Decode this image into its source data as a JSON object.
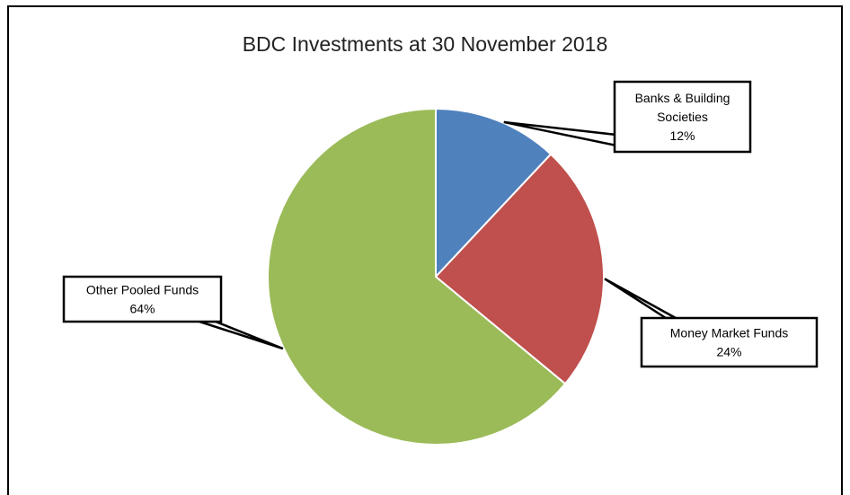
{
  "chart_data": {
    "type": "pie",
    "title": "BDC Investments at 30 November  2018",
    "slices": [
      {
        "label_lines": [
          "Banks & Building",
          "Societies"
        ],
        "percent_label": "12%",
        "value": 12,
        "color": "#4f81bd"
      },
      {
        "label_lines": [
          "Money Market Funds"
        ],
        "percent_label": "24%",
        "value": 24,
        "color": "#c0504d"
      },
      {
        "label_lines": [
          "Other Pooled Funds"
        ],
        "percent_label": "64%",
        "value": 64,
        "color": "#9bbb59"
      }
    ],
    "start_angle": "12 o'clock",
    "direction": "clockwise",
    "legend": "none",
    "data_labels": "callouts"
  }
}
